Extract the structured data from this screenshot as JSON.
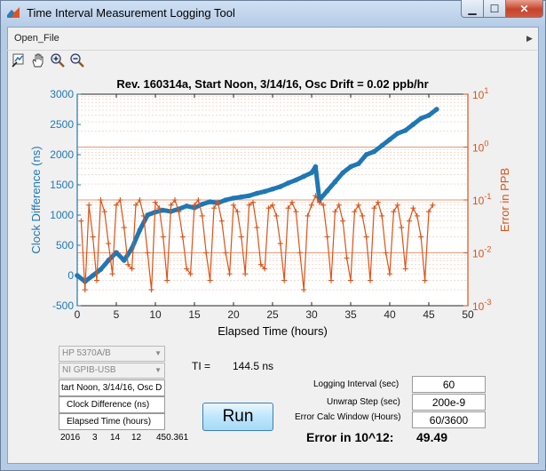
{
  "window": {
    "title": "Time Interval Measurement Logging Tool"
  },
  "menu": {
    "open_file": "Open_File"
  },
  "toolbar": {
    "icons": [
      "data-cursor-icon",
      "pan-hand-icon",
      "zoom-in-icon",
      "zoom-out-icon"
    ]
  },
  "colors": {
    "left_series": "#1f77b4",
    "right_series": "#d95319",
    "titlebar": "#b9d1ea"
  },
  "chart_data": {
    "type": "line",
    "title": "Rev. 160314a, Start Noon, 3/14/16, Osc Drift = 0.02 ppb/hr",
    "xlabel": "Elapsed Time (hours)",
    "ylabel_left": "Clock Difference (ns)",
    "ylabel_right": "Error in PPB",
    "xlim": [
      0,
      50
    ],
    "ylim_left": [
      -500,
      3000
    ],
    "ylim_right": [
      0.001,
      10
    ],
    "right_scale": "log",
    "x_ticks": [
      "0",
      "5",
      "10",
      "15",
      "20",
      "25",
      "30",
      "35",
      "40",
      "45",
      "50"
    ],
    "y_left_ticks": [
      "-500",
      "0",
      "500",
      "1000",
      "1500",
      "2000",
      "2500",
      "3000"
    ],
    "y_right_ticks": [
      {
        "base": "10",
        "exp": "-3"
      },
      {
        "base": "10",
        "exp": "-2"
      },
      {
        "base": "10",
        "exp": "-1"
      },
      {
        "base": "10",
        "exp": "0"
      },
      {
        "base": "10",
        "exp": "1"
      }
    ],
    "grid": "right-axis log grid",
    "series": [
      {
        "name": "Clock Difference (ns)",
        "axis": "left",
        "x": [
          0,
          1,
          2,
          3,
          4,
          5,
          6,
          7,
          8,
          9,
          10,
          11,
          12,
          13,
          14,
          15,
          16,
          17,
          18,
          19,
          20,
          21,
          22,
          23,
          24,
          25,
          26,
          27,
          28,
          29,
          30,
          30.5,
          31,
          32,
          33,
          34,
          35,
          36,
          37,
          38,
          39,
          40,
          41,
          42,
          43,
          44,
          45,
          46
        ],
        "y": [
          0,
          -100,
          0,
          100,
          250,
          380,
          250,
          450,
          750,
          1000,
          1050,
          1080,
          1060,
          1100,
          1150,
          1120,
          1180,
          1220,
          1200,
          1250,
          1280,
          1300,
          1320,
          1360,
          1390,
          1430,
          1470,
          1530,
          1580,
          1640,
          1700,
          1800,
          1250,
          1400,
          1550,
          1700,
          1800,
          1850,
          2000,
          2050,
          2150,
          2250,
          2350,
          2400,
          2500,
          2600,
          2650,
          2750
        ]
      },
      {
        "name": "Error in PPB",
        "axis": "right",
        "x": [
          0.5,
          1,
          1.5,
          2,
          2.5,
          3,
          3.5,
          4,
          4.5,
          5,
          5.5,
          6,
          6.5,
          7,
          7.5,
          8,
          8.5,
          9,
          9.5,
          10,
          10.5,
          11,
          11.5,
          12,
          12.5,
          13,
          13.5,
          14,
          14.5,
          15,
          15.5,
          16,
          16.5,
          17,
          17.5,
          18,
          18.5,
          19,
          19.5,
          20,
          20.5,
          21,
          21.5,
          22,
          22.5,
          23,
          23.5,
          24,
          24.5,
          25,
          25.5,
          26,
          26.5,
          27,
          27.5,
          28,
          28.5,
          29,
          29.5,
          30,
          30.5,
          31,
          31.5,
          32,
          32.5,
          33,
          33.5,
          34,
          34.5,
          35,
          35.5,
          36,
          36.5,
          37,
          37.5,
          38,
          38.5,
          39,
          39.5,
          40,
          40.5,
          41,
          41.5,
          42,
          42.5,
          43,
          43.5,
          44,
          44.5,
          45,
          45.5
        ],
        "y": [
          0.04,
          0.002,
          0.08,
          0.02,
          0.003,
          0.1,
          0.06,
          0.015,
          0.004,
          0.08,
          0.1,
          0.03,
          0.006,
          0.005,
          0.08,
          0.1,
          0.05,
          0.01,
          0.002,
          0.09,
          0.07,
          0.02,
          0.003,
          0.08,
          0.1,
          0.06,
          0.02,
          0.005,
          0.004,
          0.08,
          0.1,
          0.05,
          0.01,
          0.003,
          0.07,
          0.09,
          0.04,
          0.01,
          0.004,
          0.08,
          0.06,
          0.02,
          0.004,
          0.08,
          0.09,
          0.03,
          0.006,
          0.005,
          0.07,
          0.08,
          0.05,
          0.015,
          0.003,
          0.07,
          0.09,
          0.06,
          0.01,
          0.002,
          0.05,
          0.08,
          0.12,
          0.09,
          0.08,
          0.02,
          0.003,
          0.06,
          0.08,
          0.04,
          0.008,
          0.003,
          0.06,
          0.08,
          0.05,
          0.02,
          0.003,
          0.07,
          0.09,
          0.05,
          0.01,
          0.004,
          0.06,
          0.08,
          0.03,
          0.005,
          0.04,
          0.07,
          0.05,
          0.02,
          0.003,
          0.06,
          0.08
        ]
      }
    ]
  },
  "controls": {
    "instrument_select": "HP 5370A/B",
    "interface_select": "NI GPIB-USB",
    "title_field": "tart Noon, 3/14/16, Osc D",
    "ylabel_field": "Clock Difference (ns)",
    "xlabel_field": "Elapsed Time (hours)",
    "timestamp": [
      "2016",
      "3",
      "14",
      "12",
      "450.361"
    ],
    "ti_label": "TI =",
    "ti_value": "144.5 ns",
    "logging_interval_label": "Logging  Interval (sec)",
    "logging_interval_value": "60",
    "unwrap_step_label": "Unwrap Step (sec)",
    "unwrap_step_value": "200e-9",
    "error_window_label": "Error Calc Window (Hours)",
    "error_window_value": "60/3600",
    "error_label": "Error in 10^12:",
    "error_value": "49.49",
    "run_label": "Run"
  }
}
